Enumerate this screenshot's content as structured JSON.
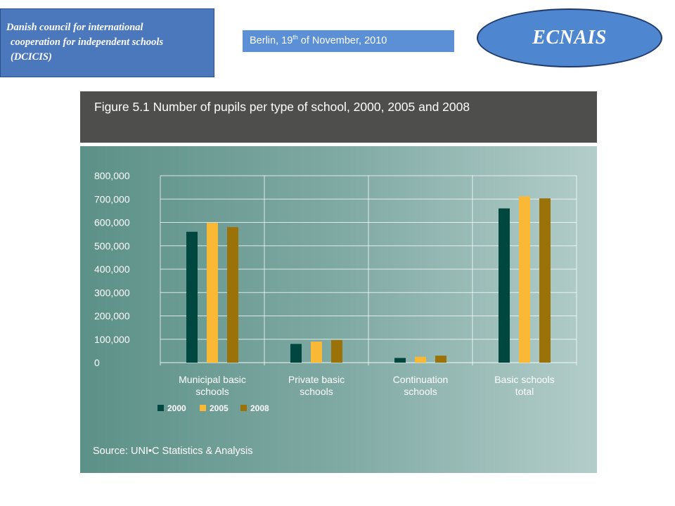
{
  "header": {
    "org_lines": [
      "Danish council for international",
      "cooperation for independent schools",
      "(DCICIS)"
    ],
    "date_prefix": "Berlin, 19",
    "date_sup": "th",
    "date_suffix": " of November, 2010",
    "logo_text": "ECNAIS"
  },
  "colors": {
    "header_box": "#4b78bd",
    "date_box": "#5b8fd6",
    "logo": "#4f86d0",
    "figure_header": "#4e4f4c",
    "series_2000": "#00473f",
    "series_2005": "#f9b937",
    "series_2008": "#9a7208"
  },
  "chart_data": {
    "type": "bar",
    "title": "Figure 5.1  Number of pupils per type of school, 2000, 2005 and 2008",
    "source": "Source: UNI•C Statistics & Analysis",
    "categories": [
      [
        "Municipal basic",
        "schools"
      ],
      [
        "Private basic",
        "schools"
      ],
      [
        "Continuation",
        "schools"
      ],
      [
        "Basic schools",
        "total"
      ]
    ],
    "series": [
      {
        "name": "2000",
        "values": [
          560000,
          80000,
          20000,
          660000
        ]
      },
      {
        "name": "2005",
        "values": [
          598000,
          90000,
          25000,
          712000
        ]
      },
      {
        "name": "2008",
        "values": [
          580000,
          97000,
          30000,
          703000
        ]
      }
    ],
    "ylim": [
      0,
      800000
    ],
    "yticks": [
      "0",
      "100,000",
      "200,000",
      "300,000",
      "400,000",
      "500,000",
      "600,000",
      "700,000",
      "800,000"
    ],
    "grid": true,
    "legend_position": "bottom-left"
  }
}
